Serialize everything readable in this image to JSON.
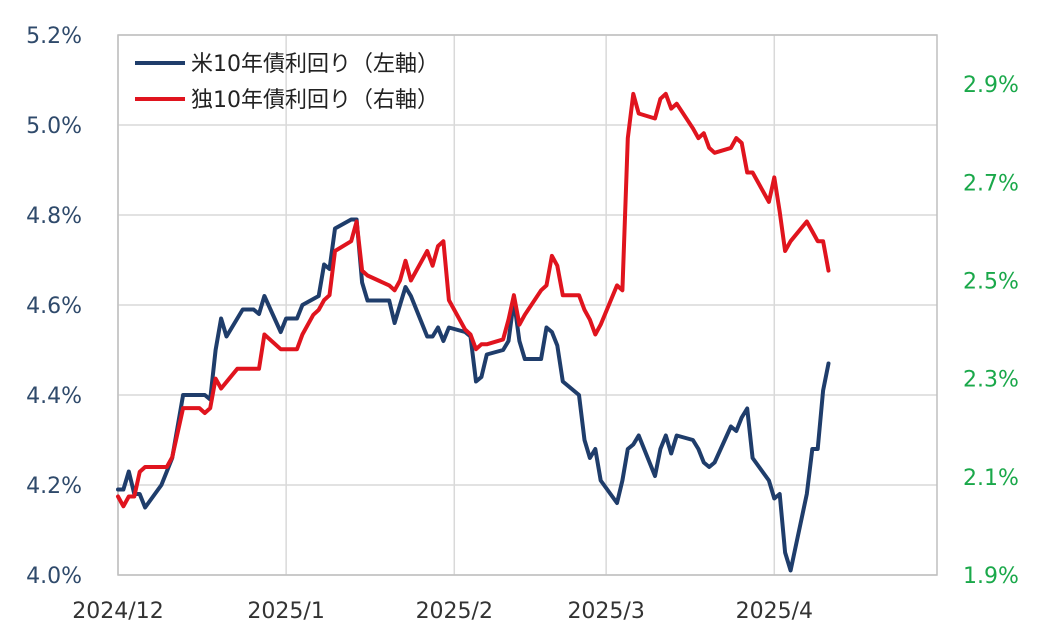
{
  "chart_data": {
    "type": "line",
    "title": "",
    "xlabel": "",
    "ylabel": "",
    "grid": true,
    "legend_position": "top-left",
    "x_range": [
      "2024-12-01",
      "2025-05-01"
    ],
    "x_ticks": [
      "2024/12",
      "2025/1",
      "2025/2",
      "2025/3",
      "2025/4"
    ],
    "x_tick_dates": [
      "2024-12-01",
      "2025-01-01",
      "2025-02-01",
      "2025-03-01",
      "2025-04-01"
    ],
    "y_left": {
      "min": 4.0,
      "max": 5.2,
      "ticks": [
        "4.0%",
        "4.2%",
        "4.4%",
        "4.6%",
        "4.8%",
        "5.0%",
        "5.2%"
      ],
      "tick_values": [
        4.0,
        4.2,
        4.4,
        4.6,
        4.8,
        5.0,
        5.2
      ],
      "color": "#2f4a6b"
    },
    "y_right": {
      "min": 1.9,
      "max": 3.0,
      "ticks": [
        "1.9%",
        "2.1%",
        "2.3%",
        "2.5%",
        "2.7%",
        "2.9%"
      ],
      "tick_values": [
        1.9,
        2.1,
        2.3,
        2.5,
        2.7,
        2.9
      ],
      "color": "#1aa84a"
    },
    "series": [
      {
        "name": "米10年債利回り（左軸）",
        "axis": "left",
        "color": "#1f3d6b",
        "points": [
          [
            "2024-12-01",
            4.19
          ],
          [
            "2024-12-02",
            4.19
          ],
          [
            "2024-12-03",
            4.23
          ],
          [
            "2024-12-04",
            4.18
          ],
          [
            "2024-12-05",
            4.18
          ],
          [
            "2024-12-06",
            4.15
          ],
          [
            "2024-12-09",
            4.2
          ],
          [
            "2024-12-10",
            4.23
          ],
          [
            "2024-12-11",
            4.26
          ],
          [
            "2024-12-13",
            4.4
          ],
          [
            "2024-12-17",
            4.4
          ],
          [
            "2024-12-18",
            4.39
          ],
          [
            "2024-12-19",
            4.5
          ],
          [
            "2024-12-20",
            4.57
          ],
          [
            "2024-12-21",
            4.53
          ],
          [
            "2024-12-24",
            4.59
          ],
          [
            "2024-12-26",
            4.59
          ],
          [
            "2024-12-27",
            4.58
          ],
          [
            "2024-12-28",
            4.62
          ],
          [
            "2024-12-31",
            4.54
          ],
          [
            "2025-01-01",
            4.57
          ],
          [
            "2025-01-03",
            4.57
          ],
          [
            "2025-01-04",
            4.6
          ],
          [
            "2025-01-07",
            4.62
          ],
          [
            "2025-01-08",
            4.69
          ],
          [
            "2025-01-09",
            4.68
          ],
          [
            "2025-01-10",
            4.77
          ],
          [
            "2025-01-13",
            4.79
          ],
          [
            "2025-01-14",
            4.79
          ],
          [
            "2025-01-15",
            4.65
          ],
          [
            "2025-01-16",
            4.61
          ],
          [
            "2025-01-20",
            4.61
          ],
          [
            "2025-01-21",
            4.56
          ],
          [
            "2025-01-22",
            4.6
          ],
          [
            "2025-01-23",
            4.64
          ],
          [
            "2025-01-24",
            4.62
          ],
          [
            "2025-01-27",
            4.53
          ],
          [
            "2025-01-28",
            4.53
          ],
          [
            "2025-01-29",
            4.55
          ],
          [
            "2025-01-30",
            4.52
          ],
          [
            "2025-01-31",
            4.55
          ],
          [
            "2025-02-03",
            4.54
          ],
          [
            "2025-02-04",
            4.53
          ],
          [
            "2025-02-05",
            4.43
          ],
          [
            "2025-02-06",
            4.44
          ],
          [
            "2025-02-07",
            4.49
          ],
          [
            "2025-02-10",
            4.5
          ],
          [
            "2025-02-11",
            4.52
          ],
          [
            "2025-02-12",
            4.61
          ],
          [
            "2025-02-13",
            4.52
          ],
          [
            "2025-02-14",
            4.48
          ],
          [
            "2025-02-17",
            4.48
          ],
          [
            "2025-02-18",
            4.55
          ],
          [
            "2025-02-19",
            4.54
          ],
          [
            "2025-02-20",
            4.51
          ],
          [
            "2025-02-21",
            4.43
          ],
          [
            "2025-02-24",
            4.4
          ],
          [
            "2025-02-25",
            4.3
          ],
          [
            "2025-02-26",
            4.26
          ],
          [
            "2025-02-27",
            4.28
          ],
          [
            "2025-02-28",
            4.21
          ],
          [
            "2025-03-03",
            4.16
          ],
          [
            "2025-03-04",
            4.21
          ],
          [
            "2025-03-05",
            4.28
          ],
          [
            "2025-03-06",
            4.29
          ],
          [
            "2025-03-07",
            4.31
          ],
          [
            "2025-03-10",
            4.22
          ],
          [
            "2025-03-11",
            4.28
          ],
          [
            "2025-03-12",
            4.31
          ],
          [
            "2025-03-13",
            4.27
          ],
          [
            "2025-03-14",
            4.31
          ],
          [
            "2025-03-17",
            4.3
          ],
          [
            "2025-03-18",
            4.28
          ],
          [
            "2025-03-19",
            4.25
          ],
          [
            "2025-03-20",
            4.24
          ],
          [
            "2025-03-21",
            4.25
          ],
          [
            "2025-03-24",
            4.33
          ],
          [
            "2025-03-25",
            4.32
          ],
          [
            "2025-03-26",
            4.35
          ],
          [
            "2025-03-27",
            4.37
          ],
          [
            "2025-03-28",
            4.26
          ],
          [
            "2025-03-31",
            4.21
          ],
          [
            "2025-04-01",
            4.17
          ],
          [
            "2025-04-02",
            4.18
          ],
          [
            "2025-04-03",
            4.05
          ],
          [
            "2025-04-04",
            4.01
          ],
          [
            "2025-04-07",
            4.18
          ],
          [
            "2025-04-08",
            4.28
          ],
          [
            "2025-04-09",
            4.28
          ],
          [
            "2025-04-10",
            4.41
          ],
          [
            "2025-04-11",
            4.47
          ]
        ]
      },
      {
        "name": "独10年債利回り（右軸）",
        "axis": "right",
        "color": "#e0141e",
        "points": [
          [
            "2024-12-01",
            2.06
          ],
          [
            "2024-12-02",
            2.04
          ],
          [
            "2024-12-03",
            2.06
          ],
          [
            "2024-12-04",
            2.06
          ],
          [
            "2024-12-05",
            2.11
          ],
          [
            "2024-12-06",
            2.12
          ],
          [
            "2024-12-09",
            2.12
          ],
          [
            "2024-12-10",
            2.12
          ],
          [
            "2024-12-11",
            2.14
          ],
          [
            "2024-12-13",
            2.24
          ],
          [
            "2024-12-16",
            2.24
          ],
          [
            "2024-12-17",
            2.23
          ],
          [
            "2024-12-18",
            2.24
          ],
          [
            "2024-12-19",
            2.3
          ],
          [
            "2024-12-20",
            2.28
          ],
          [
            "2024-12-23",
            2.32
          ],
          [
            "2024-12-27",
            2.32
          ],
          [
            "2024-12-28",
            2.39
          ],
          [
            "2024-12-31",
            2.36
          ],
          [
            "2025-01-03",
            2.36
          ],
          [
            "2025-01-04",
            2.39
          ],
          [
            "2025-01-06",
            2.43
          ],
          [
            "2025-01-07",
            2.44
          ],
          [
            "2025-01-08",
            2.46
          ],
          [
            "2025-01-09",
            2.47
          ],
          [
            "2025-01-10",
            2.56
          ],
          [
            "2025-01-13",
            2.58
          ],
          [
            "2025-01-14",
            2.62
          ],
          [
            "2025-01-15",
            2.52
          ],
          [
            "2025-01-16",
            2.51
          ],
          [
            "2025-01-20",
            2.49
          ],
          [
            "2025-01-21",
            2.48
          ],
          [
            "2025-01-22",
            2.5
          ],
          [
            "2025-01-23",
            2.54
          ],
          [
            "2025-01-24",
            2.5
          ],
          [
            "2025-01-27",
            2.56
          ],
          [
            "2025-01-28",
            2.53
          ],
          [
            "2025-01-29",
            2.57
          ],
          [
            "2025-01-30",
            2.58
          ],
          [
            "2025-01-31",
            2.46
          ],
          [
            "2025-02-03",
            2.4
          ],
          [
            "2025-02-04",
            2.39
          ],
          [
            "2025-02-05",
            2.36
          ],
          [
            "2025-02-06",
            2.37
          ],
          [
            "2025-02-07",
            2.37
          ],
          [
            "2025-02-10",
            2.38
          ],
          [
            "2025-02-11",
            2.42
          ],
          [
            "2025-02-12",
            2.47
          ],
          [
            "2025-02-13",
            2.41
          ],
          [
            "2025-02-14",
            2.43
          ],
          [
            "2025-02-17",
            2.48
          ],
          [
            "2025-02-18",
            2.49
          ],
          [
            "2025-02-19",
            2.55
          ],
          [
            "2025-02-20",
            2.53
          ],
          [
            "2025-02-21",
            2.47
          ],
          [
            "2025-02-24",
            2.47
          ],
          [
            "2025-02-25",
            2.44
          ],
          [
            "2025-02-26",
            2.42
          ],
          [
            "2025-02-27",
            2.39
          ],
          [
            "2025-02-28",
            2.41
          ],
          [
            "2025-03-03",
            2.49
          ],
          [
            "2025-03-04",
            2.48
          ],
          [
            "2025-03-05",
            2.79
          ],
          [
            "2025-03-06",
            2.88
          ],
          [
            "2025-03-07",
            2.84
          ],
          [
            "2025-03-10",
            2.83
          ],
          [
            "2025-03-11",
            2.87
          ],
          [
            "2025-03-12",
            2.88
          ],
          [
            "2025-03-13",
            2.85
          ],
          [
            "2025-03-14",
            2.86
          ],
          [
            "2025-03-17",
            2.81
          ],
          [
            "2025-03-18",
            2.79
          ],
          [
            "2025-03-19",
            2.8
          ],
          [
            "2025-03-20",
            2.77
          ],
          [
            "2025-03-21",
            2.76
          ],
          [
            "2025-03-24",
            2.77
          ],
          [
            "2025-03-25",
            2.79
          ],
          [
            "2025-03-26",
            2.78
          ],
          [
            "2025-03-27",
            2.72
          ],
          [
            "2025-03-28",
            2.72
          ],
          [
            "2025-03-31",
            2.66
          ],
          [
            "2025-04-01",
            2.71
          ],
          [
            "2025-04-02",
            2.64
          ],
          [
            "2025-04-03",
            2.56
          ],
          [
            "2025-04-04",
            2.58
          ],
          [
            "2025-04-07",
            2.62
          ],
          [
            "2025-04-08",
            2.6
          ],
          [
            "2025-04-09",
            2.58
          ],
          [
            "2025-04-10",
            2.58
          ],
          [
            "2025-04-11",
            2.52
          ]
        ]
      }
    ]
  }
}
